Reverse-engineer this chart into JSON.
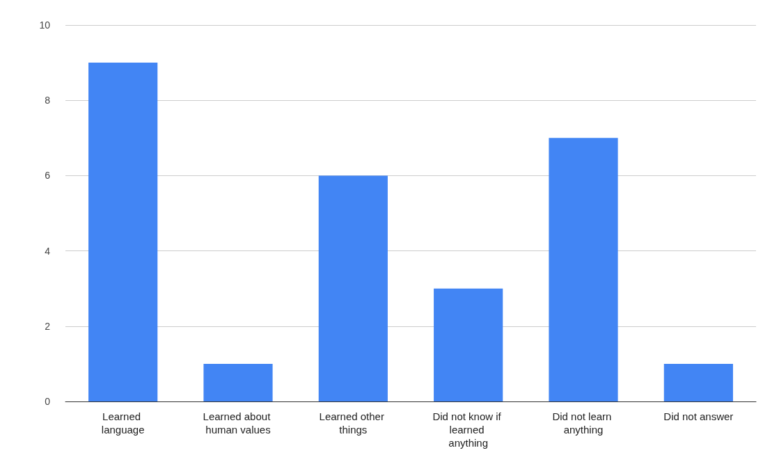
{
  "chart_data": {
    "type": "bar",
    "categories": [
      "Learned language",
      "Learned about human values",
      "Learned other things",
      "Did not know if learned anything",
      "Did not learn anything",
      "Did not answer"
    ],
    "values": [
      9,
      1,
      6,
      3,
      7,
      1
    ],
    "color": "#4285f4",
    "ylim": [
      0,
      10
    ],
    "yticks": [
      0,
      2,
      4,
      6,
      8,
      10
    ],
    "grid": "y"
  }
}
